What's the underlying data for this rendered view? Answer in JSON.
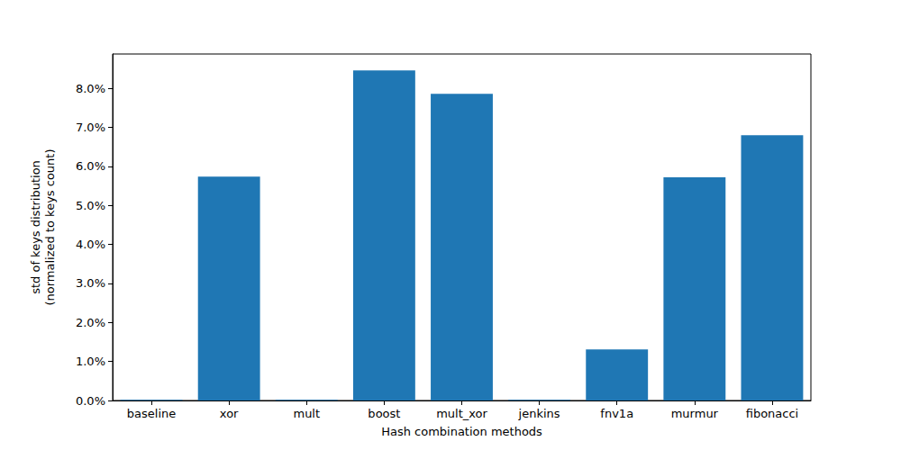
{
  "chart_data": {
    "type": "bar",
    "x_label": "Hash combination methods",
    "y_label": "std of keys distribution\n(normalized to keys count)",
    "categories": [
      "baseline",
      "xor",
      "mult",
      "boost",
      "mult_xor",
      "jenkins",
      "fnv1a",
      "murmur",
      "fibonacci"
    ],
    "values": [
      0.02,
      5.74,
      0.02,
      8.46,
      7.86,
      0.02,
      1.31,
      5.72,
      6.8
    ],
    "color": "#1f77b4",
    "ylim": [
      0,
      8.88
    ],
    "yticks": [
      {
        "value": 0,
        "label": "0.0%"
      },
      {
        "value": 1,
        "label": "1.0%"
      },
      {
        "value": 2,
        "label": "2.0%"
      },
      {
        "value": 3,
        "label": "3.0%"
      },
      {
        "value": 4,
        "label": "4.0%"
      },
      {
        "value": 5,
        "label": "5.0%"
      },
      {
        "value": 6,
        "label": "6.0%"
      },
      {
        "value": 7,
        "label": "7.0%"
      },
      {
        "value": 8,
        "label": "8.0%"
      }
    ],
    "grid": false
  }
}
